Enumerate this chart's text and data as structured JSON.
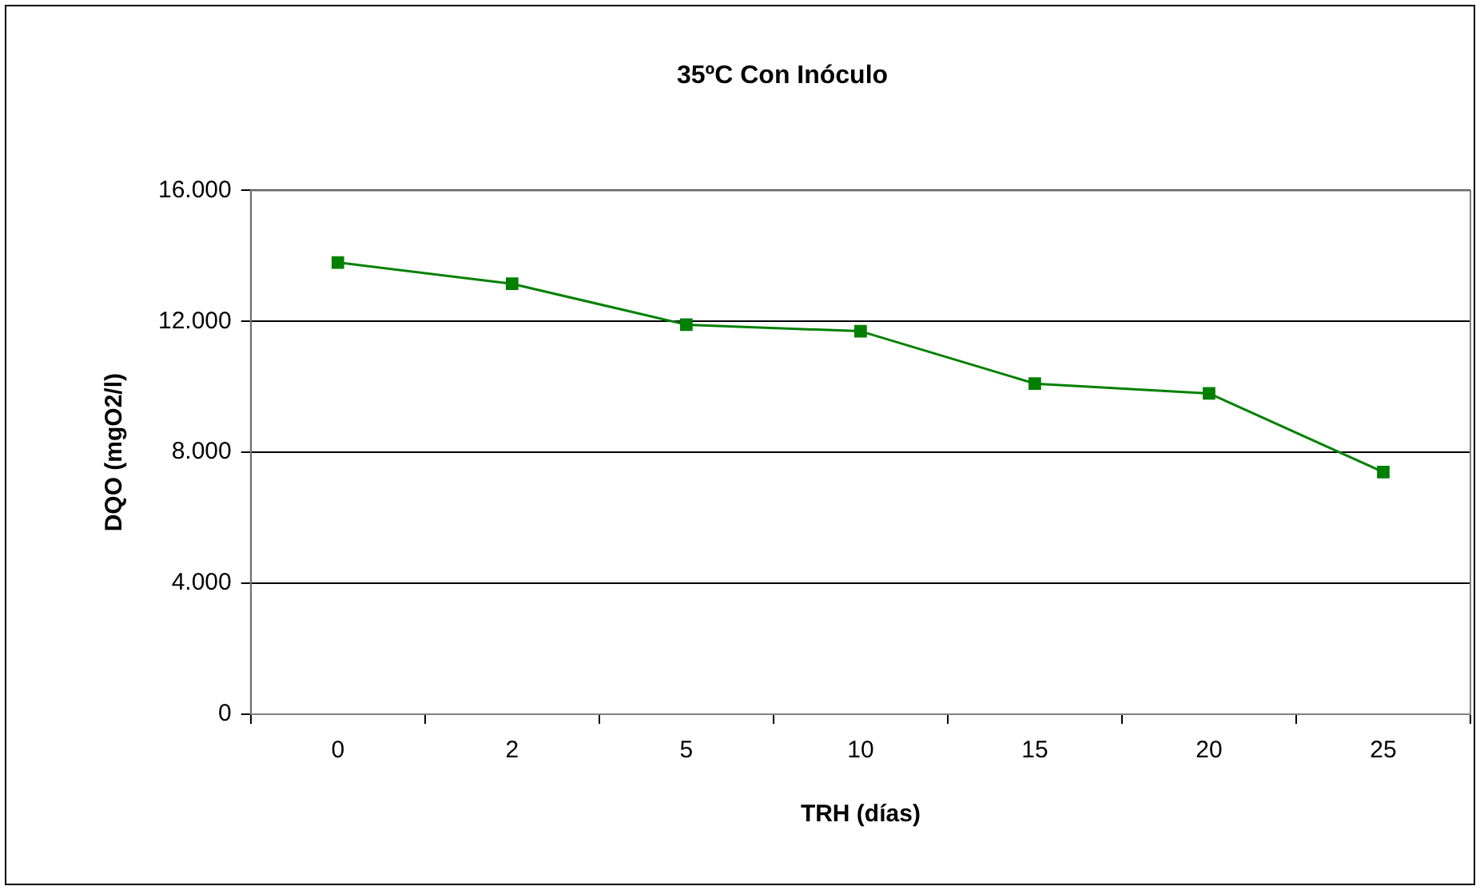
{
  "chart_data": {
    "type": "line",
    "title": "35ºC Con Inóculo",
    "xlabel": "TRH (días)",
    "ylabel": "DQO (mgO2/l)",
    "categories": [
      "0",
      "2",
      "5",
      "10",
      "15",
      "20",
      "25"
    ],
    "series": [
      {
        "color": "#008000",
        "values": [
          13800,
          13150,
          11900,
          11700,
          10100,
          9800,
          7400
        ]
      }
    ],
    "ylim": [
      0,
      16000
    ],
    "yticks": [
      {
        "value": 0,
        "label": "0"
      },
      {
        "value": 4000,
        "label": "4.000"
      },
      {
        "value": 8000,
        "label": "8.000"
      },
      {
        "value": 12000,
        "label": "12.000"
      },
      {
        "value": 16000,
        "label": "16.000"
      }
    ],
    "grid": "y",
    "legend": false,
    "marker": "square",
    "line_style": "solid"
  }
}
